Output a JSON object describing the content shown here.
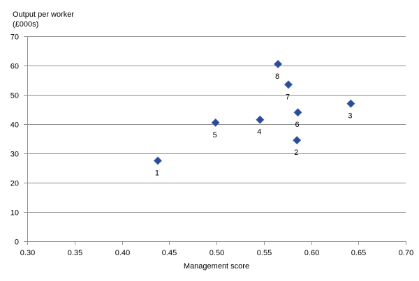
{
  "chart": {
    "y_axis_title_line1": "Output per worker",
    "y_axis_title_line2": "(£000s)",
    "x_axis_title": "Management score"
  },
  "colors": {
    "marker": "#2B4B9B",
    "grid": "#8E8E8E",
    "text": "#000000"
  },
  "chart_data": {
    "type": "scatter",
    "title": "",
    "xlabel": "Management score",
    "ylabel": "Output per worker (£000s)",
    "xlim": [
      0.3,
      0.7
    ],
    "ylim": [
      0,
      70
    ],
    "x_tick_labels": [
      "0.30",
      "0.35",
      "0.40",
      "0.45",
      "0.50",
      "0.55",
      "0.60",
      "0.65",
      "0.70"
    ],
    "y_tick_labels": [
      "0",
      "10",
      "20",
      "30",
      "40",
      "50",
      "60",
      "70"
    ],
    "grid": "horizontal",
    "legend": "none",
    "marker_shape": "diamond",
    "points": [
      {
        "label": "1",
        "x": 0.438,
        "y": 27.5
      },
      {
        "label": "2",
        "x": 0.585,
        "y": 34.5
      },
      {
        "label": "3",
        "x": 0.642,
        "y": 47.0
      },
      {
        "label": "4",
        "x": 0.546,
        "y": 41.5
      },
      {
        "label": "5",
        "x": 0.499,
        "y": 40.5
      },
      {
        "label": "6",
        "x": 0.586,
        "y": 44.0
      },
      {
        "label": "7",
        "x": 0.576,
        "y": 53.5
      },
      {
        "label": "8",
        "x": 0.565,
        "y": 60.5
      }
    ]
  }
}
